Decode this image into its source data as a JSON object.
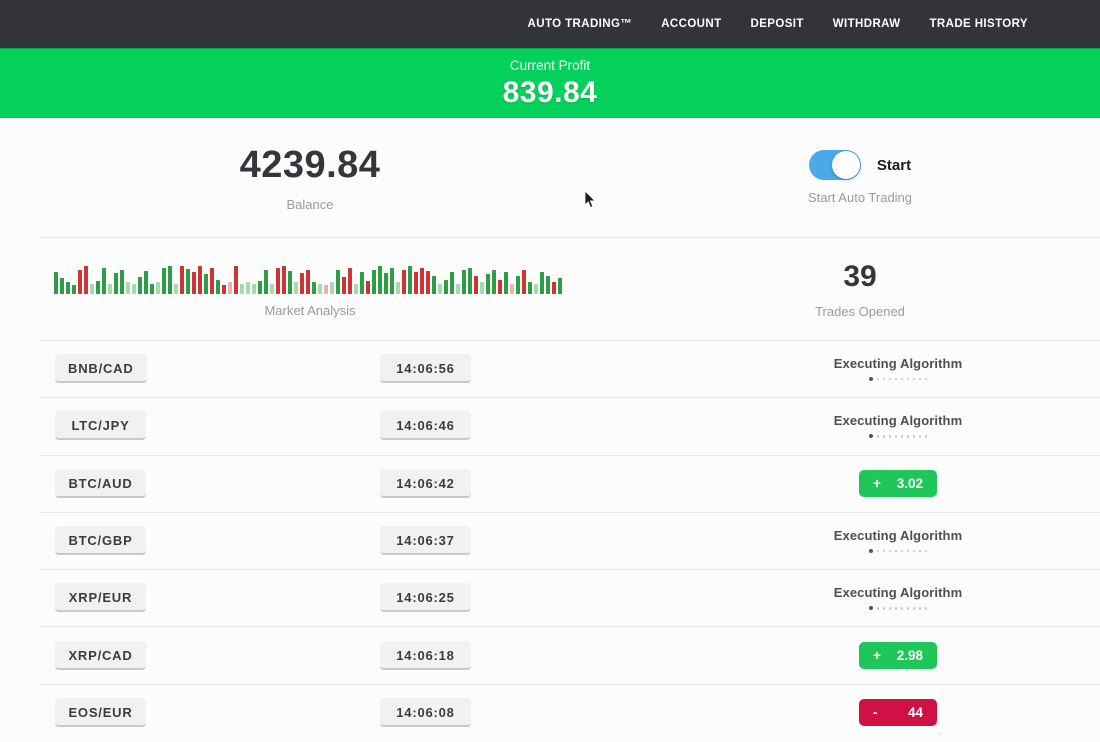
{
  "nav": {
    "items": [
      "AUTO TRADING™",
      "ACCOUNT",
      "DEPOSIT",
      "WITHDRAW",
      "TRADE HISTORY"
    ]
  },
  "profit_banner": {
    "label": "Current Profit",
    "value": "839.84"
  },
  "account": {
    "balance": "4239.84",
    "balance_label": "Balance",
    "toggle_label": "Start",
    "toggle_caption": "Start Auto Trading",
    "toggle_on": true
  },
  "market": {
    "chart_label": "Market Analysis",
    "trades_opened": "39",
    "trades_opened_label": "Trades Opened"
  },
  "chart_data": {
    "type": "bar",
    "title": "Market Analysis",
    "description": "mini candlestick-style volume bars, relative heights in px, colors g=green r=red lg=light-green lr=light-red",
    "bars": [
      [
        22,
        "g"
      ],
      [
        16,
        "g"
      ],
      [
        12,
        "g"
      ],
      [
        9,
        "g"
      ],
      [
        24,
        "r"
      ],
      [
        28,
        "r"
      ],
      [
        10,
        "lg"
      ],
      [
        13,
        "g"
      ],
      [
        26,
        "g"
      ],
      [
        10,
        "lg"
      ],
      [
        21,
        "g"
      ],
      [
        24,
        "g"
      ],
      [
        12,
        "lg"
      ],
      [
        10,
        "lg"
      ],
      [
        17,
        "g"
      ],
      [
        23,
        "g"
      ],
      [
        10,
        "g"
      ],
      [
        12,
        "lg"
      ],
      [
        26,
        "g"
      ],
      [
        28,
        "g"
      ],
      [
        10,
        "lg"
      ],
      [
        28,
        "r"
      ],
      [
        25,
        "g"
      ],
      [
        22,
        "r"
      ],
      [
        28,
        "r"
      ],
      [
        20,
        "g"
      ],
      [
        26,
        "r"
      ],
      [
        14,
        "g"
      ],
      [
        9,
        "r"
      ],
      [
        12,
        "lr"
      ],
      [
        28,
        "r"
      ],
      [
        10,
        "lg"
      ],
      [
        12,
        "lg"
      ],
      [
        10,
        "lg"
      ],
      [
        13,
        "g"
      ],
      [
        24,
        "g"
      ],
      [
        10,
        "lg"
      ],
      [
        26,
        "r"
      ],
      [
        28,
        "r"
      ],
      [
        23,
        "g"
      ],
      [
        12,
        "lg"
      ],
      [
        21,
        "r"
      ],
      [
        24,
        "r"
      ],
      [
        12,
        "g"
      ],
      [
        10,
        "lg"
      ],
      [
        9,
        "lr"
      ],
      [
        12,
        "lg"
      ],
      [
        24,
        "g"
      ],
      [
        17,
        "r"
      ],
      [
        26,
        "r"
      ],
      [
        10,
        "lg"
      ],
      [
        22,
        "g"
      ],
      [
        13,
        "r"
      ],
      [
        24,
        "g"
      ],
      [
        28,
        "g"
      ],
      [
        21,
        "g"
      ],
      [
        26,
        "g"
      ],
      [
        12,
        "lg"
      ],
      [
        24,
        "r"
      ],
      [
        28,
        "g"
      ],
      [
        22,
        "r"
      ],
      [
        26,
        "r"
      ],
      [
        23,
        "r"
      ],
      [
        18,
        "g"
      ],
      [
        10,
        "lg"
      ],
      [
        14,
        "g"
      ],
      [
        22,
        "g"
      ],
      [
        10,
        "lg"
      ],
      [
        24,
        "g"
      ],
      [
        26,
        "g"
      ],
      [
        18,
        "r"
      ],
      [
        12,
        "lg"
      ],
      [
        20,
        "g"
      ],
      [
        24,
        "g"
      ],
      [
        14,
        "r"
      ],
      [
        22,
        "g"
      ],
      [
        10,
        "lr"
      ],
      [
        18,
        "g"
      ],
      [
        24,
        "r"
      ],
      [
        12,
        "g"
      ],
      [
        10,
        "lg"
      ],
      [
        22,
        "g"
      ],
      [
        18,
        "g"
      ],
      [
        12,
        "r"
      ],
      [
        16,
        "g"
      ]
    ]
  },
  "trades": {
    "executing_label": "Executing Algorithm",
    "loader_dots": 10,
    "rows": [
      {
        "pair": "BNB/CAD",
        "time": "14:06:56",
        "status": "executing"
      },
      {
        "pair": "LTC/JPY",
        "time": "14:06:46",
        "status": "executing"
      },
      {
        "pair": "BTC/AUD",
        "time": "14:06:42",
        "status": "profit",
        "sign": "+",
        "amount": "3.02"
      },
      {
        "pair": "BTC/GBP",
        "time": "14:06:37",
        "status": "executing"
      },
      {
        "pair": "XRP/EUR",
        "time": "14:06:25",
        "status": "executing"
      },
      {
        "pair": "XRP/CAD",
        "time": "14:06:18",
        "status": "profit",
        "sign": "+",
        "amount": "2.98"
      },
      {
        "pair": "EOS/EUR",
        "time": "14:06:08",
        "status": "loss",
        "sign": "-",
        "amount": "44"
      }
    ]
  },
  "colors": {
    "nav_bg": "#333437",
    "banner_green": "#04d15c",
    "profit_green": "#1fc75a",
    "loss_red": "#d11145",
    "toggle_blue": "#4aa9e8",
    "text_dark": "#33373b",
    "text_gray": "#9b9b9b"
  }
}
